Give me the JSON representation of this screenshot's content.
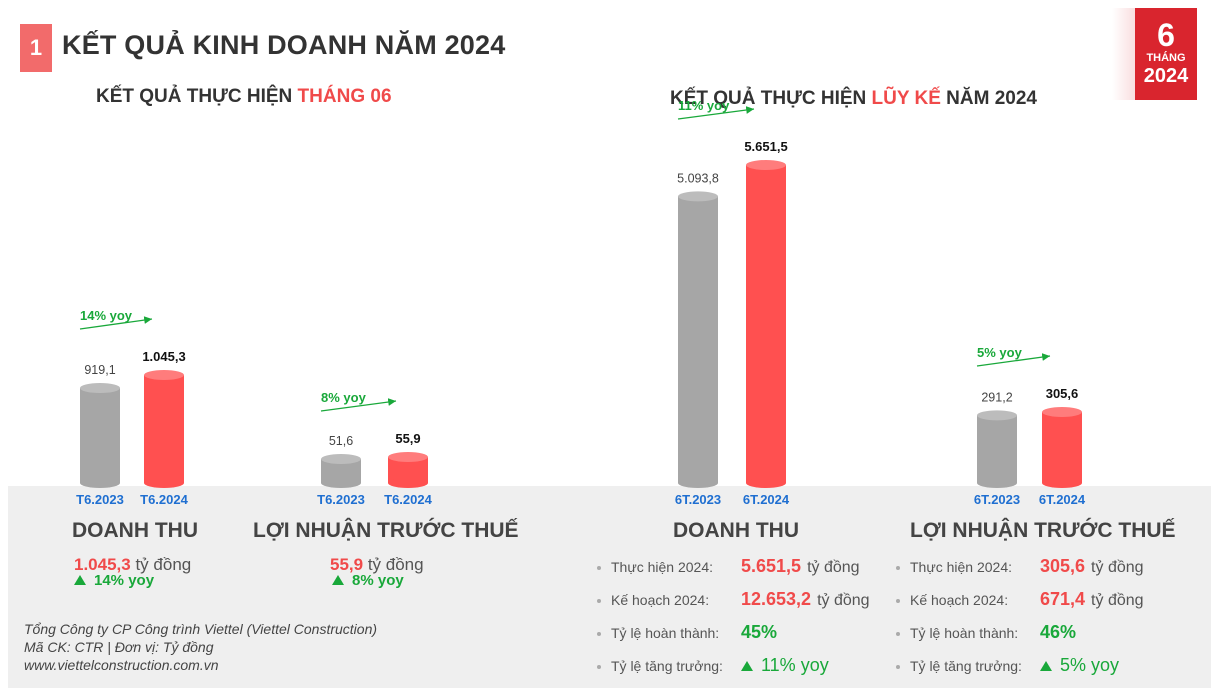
{
  "header": {
    "number": "1",
    "title": "KẾT QUẢ KINH DOANH NĂM 2024",
    "badge": {
      "big": "6",
      "small": "THÁNG",
      "year": "2024"
    }
  },
  "sections": {
    "left_title_prefix": "KẾT QUẢ THỰC HIỆN ",
    "left_title_highlight": "THÁNG 06",
    "right_title_prefix": "KẾT QUẢ THỰC HIỆN ",
    "right_title_highlight": "LŨY KẾ",
    "right_title_suffix": " NĂM 2024"
  },
  "colors": {
    "prev_year": "#a6a6a6",
    "current_year": "#ff5050",
    "yoy": "#19a83a",
    "label_blue": "#1f6fd1"
  },
  "chart_data": [
    {
      "type": "bar",
      "title": "DOANH THU",
      "categories": [
        "T6.2023",
        "T6.2024"
      ],
      "values": [
        919.1,
        1045.3
      ],
      "value_labels": [
        "919,1",
        "1.045,3"
      ],
      "yoy_label": "14% yoy"
    },
    {
      "type": "bar",
      "title": "LỢI NHUẬN TRƯỚC THUẾ",
      "categories": [
        "T6.2023",
        "T6.2024"
      ],
      "values": [
        51.6,
        55.9
      ],
      "value_labels": [
        "51,6",
        "55,9"
      ],
      "yoy_label": "8% yoy"
    },
    {
      "type": "bar",
      "title": "DOANH THU",
      "categories": [
        "6T.2023",
        "6T.2024"
      ],
      "values": [
        5093.8,
        5651.5
      ],
      "value_labels": [
        "5.093,8",
        "5.651,5"
      ],
      "yoy_label": "11% yoy"
    },
    {
      "type": "bar",
      "title": "LỢI NHUẬN TRƯỚC THUẾ",
      "categories": [
        "6T.2023",
        "6T.2024"
      ],
      "values": [
        291.2,
        305.6
      ],
      "value_labels": [
        "291,2",
        "305,6"
      ],
      "yoy_label": "5% yoy"
    }
  ],
  "left_summary": {
    "revenue": {
      "title": "DOANH THU",
      "value": "1.045,3",
      "unit": " tỷ đồng",
      "yoy": "14% yoy"
    },
    "profit": {
      "title": "LỢI NHUẬN TRƯỚC THUẾ",
      "value": "55,9",
      "unit": " tỷ đồng",
      "yoy": "8% yoy"
    }
  },
  "right_summary": {
    "revenue": {
      "title": "DOANH THU",
      "rows": [
        {
          "label": "Thực hiện 2024:",
          "value": "5.651,5",
          "unit": "tỷ đồng",
          "style": "red"
        },
        {
          "label": "Kế hoạch 2024:",
          "value": "12.653,2",
          "unit": "tỷ đồng",
          "style": "red"
        },
        {
          "label": "Tỷ lệ hoàn thành:",
          "value": "45%",
          "unit": "",
          "style": "green"
        },
        {
          "label": "Tỷ lệ tăng trưởng:",
          "value": "11% yoy",
          "unit": "",
          "style": "green-tri"
        }
      ]
    },
    "profit": {
      "title": "LỢI NHUẬN TRƯỚC THUẾ",
      "rows": [
        {
          "label": "Thực hiện 2024:",
          "value": "305,6",
          "unit": "tỷ đồng",
          "style": "red"
        },
        {
          "label": "Kế hoạch 2024:",
          "value": "671,4",
          "unit": "tỷ đồng",
          "style": "red"
        },
        {
          "label": "Tỷ lệ hoàn thành:",
          "value": "46%",
          "unit": "",
          "style": "green"
        },
        {
          "label": "Tỷ lệ tăng trưởng:",
          "value": "5% yoy",
          "unit": "",
          "style": "green-tri"
        }
      ]
    }
  },
  "footer": {
    "line1": "Tổng Công ty CP Công trình Viettel (Viettel Construction)",
    "line2": "Mã CK: CTR  |  Đơn vị: Tỷ đồng",
    "line3": "www.viettelconstruction.com.vn"
  }
}
